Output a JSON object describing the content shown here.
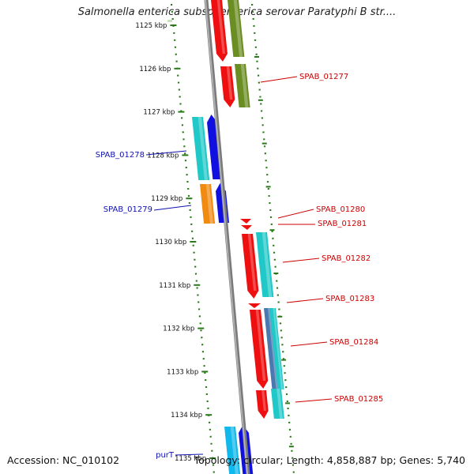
{
  "title": "Salmonella enterica subsp. enterica serovar Paratyphi B str....",
  "footer": {
    "accession": "Accession: NC_010102",
    "stats": "Topology: circular; Length: 4,858,887 bp; Genes: 5,740"
  },
  "scale_ticks": [
    "1125 kbp",
    "1126 kbp",
    "1127 kbp",
    "1128 kbp",
    "1129 kbp",
    "1130 kbp",
    "1131 kbp",
    "1132 kbp",
    "1133 kbp",
    "1134 kbp",
    "1135 kbp"
  ],
  "gene_labels": {
    "left": [
      "SPAB_01278",
      "SPAB_01279",
      "purT"
    ],
    "right": [
      "SPAB_01277",
      "SPAB_01280",
      "SPAB_01281",
      "SPAB_01282",
      "SPAB_01283",
      "SPAB_01284",
      "SPAB_01285"
    ]
  },
  "colors": {
    "left_label": "#1010b0",
    "right_label": "#cc0000",
    "scale_dots": "#2a7a1a",
    "gene_red": "#ee1010",
    "gene_olive": "#6b8e23",
    "gene_cyan": "#20c8c8",
    "gene_blue": "#1010e0",
    "gene_orange": "#f08a10",
    "gene_steel": "#4a78b0",
    "backbone": "#909090"
  }
}
